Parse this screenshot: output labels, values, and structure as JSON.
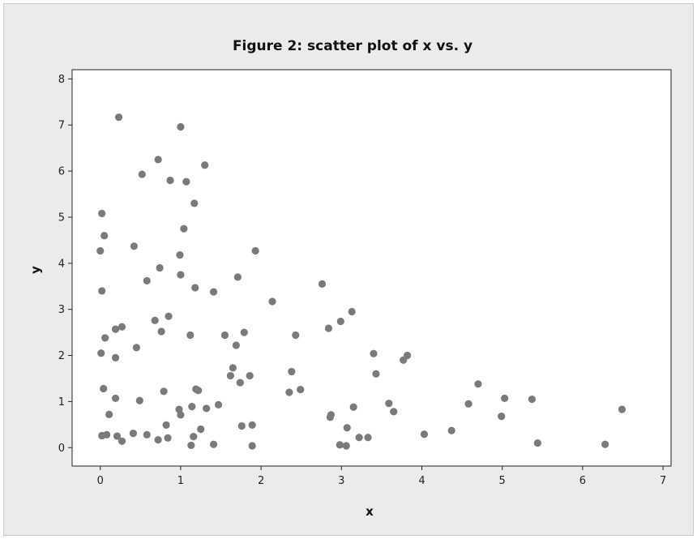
{
  "chart_data": {
    "type": "scatter",
    "title": "Figure 2: scatter plot of x vs. y",
    "xlabel": "x",
    "ylabel": "y",
    "xlim": [
      -0.35,
      7.1
    ],
    "ylim": [
      -0.4,
      8.2
    ],
    "xticks": [
      "0",
      "1",
      "2",
      "3",
      "4",
      "5",
      "6",
      "7"
    ],
    "yticks": [
      "0",
      "1",
      "2",
      "3",
      "4",
      "5",
      "6",
      "7",
      "8"
    ],
    "grid": false,
    "colors": {
      "point": "#7a7a7a",
      "background": "#ebebeb",
      "plot": "#ffffff",
      "axis": "#222222"
    },
    "points": [
      [
        0.23,
        7.17
      ],
      [
        1.0,
        6.96
      ],
      [
        0.72,
        6.25
      ],
      [
        1.3,
        6.13
      ],
      [
        0.52,
        5.93
      ],
      [
        0.87,
        5.8
      ],
      [
        1.07,
        5.77
      ],
      [
        1.17,
        5.3
      ],
      [
        0.02,
        5.08
      ],
      [
        1.04,
        4.75
      ],
      [
        0.05,
        4.6
      ],
      [
        0.42,
        4.37
      ],
      [
        0.0,
        4.27
      ],
      [
        0.99,
        4.18
      ],
      [
        1.93,
        4.27
      ],
      [
        0.74,
        3.9
      ],
      [
        1.0,
        3.75
      ],
      [
        1.71,
        3.7
      ],
      [
        0.58,
        3.62
      ],
      [
        2.76,
        3.55
      ],
      [
        1.18,
        3.47
      ],
      [
        0.02,
        3.4
      ],
      [
        1.41,
        3.38
      ],
      [
        2.14,
        3.17
      ],
      [
        3.13,
        2.95
      ],
      [
        0.85,
        2.85
      ],
      [
        0.68,
        2.76
      ],
      [
        2.99,
        2.74
      ],
      [
        0.27,
        2.62
      ],
      [
        0.19,
        2.57
      ],
      [
        2.84,
        2.59
      ],
      [
        0.76,
        2.52
      ],
      [
        1.79,
        2.5
      ],
      [
        1.12,
        2.44
      ],
      [
        1.55,
        2.44
      ],
      [
        2.43,
        2.44
      ],
      [
        0.06,
        2.38
      ],
      [
        1.69,
        2.22
      ],
      [
        0.45,
        2.17
      ],
      [
        0.01,
        2.05
      ],
      [
        3.4,
        2.04
      ],
      [
        3.82,
        2.0
      ],
      [
        0.19,
        1.95
      ],
      [
        3.77,
        1.9
      ],
      [
        1.65,
        1.73
      ],
      [
        2.38,
        1.65
      ],
      [
        3.43,
        1.6
      ],
      [
        1.62,
        1.56
      ],
      [
        1.86,
        1.56
      ],
      [
        1.74,
        1.41
      ],
      [
        4.7,
        1.38
      ],
      [
        0.04,
        1.28
      ],
      [
        1.19,
        1.27
      ],
      [
        2.49,
        1.26
      ],
      [
        1.22,
        1.24
      ],
      [
        0.79,
        1.22
      ],
      [
        2.35,
        1.2
      ],
      [
        0.19,
        1.07
      ],
      [
        0.49,
        1.02
      ],
      [
        5.37,
        1.05
      ],
      [
        5.03,
        1.07
      ],
      [
        3.59,
        0.96
      ],
      [
        4.58,
        0.95
      ],
      [
        1.47,
        0.93
      ],
      [
        1.14,
        0.89
      ],
      [
        1.32,
        0.85
      ],
      [
        3.15,
        0.88
      ],
      [
        0.98,
        0.83
      ],
      [
        3.65,
        0.78
      ],
      [
        6.49,
        0.83
      ],
      [
        0.11,
        0.72
      ],
      [
        1.0,
        0.71
      ],
      [
        2.87,
        0.71
      ],
      [
        2.86,
        0.66
      ],
      [
        4.99,
        0.68
      ],
      [
        0.82,
        0.49
      ],
      [
        1.76,
        0.47
      ],
      [
        1.89,
        0.49
      ],
      [
        3.07,
        0.43
      ],
      [
        1.25,
        0.4
      ],
      [
        4.37,
        0.37
      ],
      [
        0.41,
        0.31
      ],
      [
        0.58,
        0.28
      ],
      [
        4.03,
        0.29
      ],
      [
        0.02,
        0.26
      ],
      [
        0.08,
        0.28
      ],
      [
        0.21,
        0.25
      ],
      [
        3.22,
        0.22
      ],
      [
        3.33,
        0.22
      ],
      [
        0.84,
        0.21
      ],
      [
        1.16,
        0.24
      ],
      [
        0.72,
        0.17
      ],
      [
        0.27,
        0.14
      ],
      [
        5.44,
        0.1
      ],
      [
        6.28,
        0.07
      ],
      [
        1.41,
        0.07
      ],
      [
        1.13,
        0.05
      ],
      [
        1.89,
        0.04
      ],
      [
        2.98,
        0.06
      ],
      [
        3.06,
        0.04
      ]
    ]
  }
}
